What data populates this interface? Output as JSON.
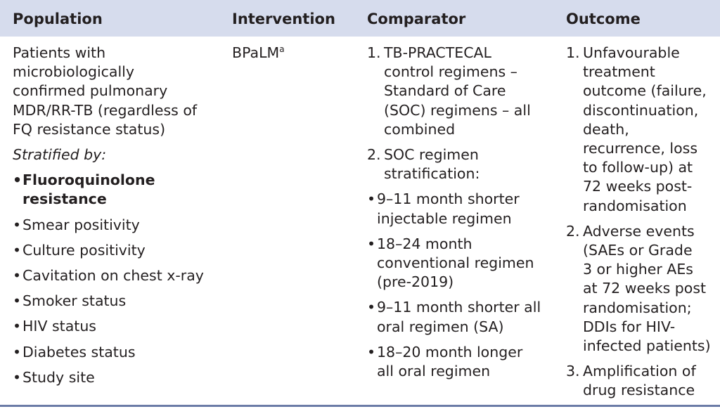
{
  "headers": {
    "population": "Population",
    "intervention": "Intervention",
    "comparator": "Comparator",
    "outcome": "Outcome"
  },
  "population": {
    "description": [
      "Patients with",
      "microbiologically",
      "confirmed pulmonary",
      "MDR/RR-TB (regardless of",
      "FQ resistance status)"
    ],
    "stratified_label": "Stratified by:",
    "strata": [
      {
        "lines": [
          "Fluoroquinolone",
          "resistance"
        ],
        "bold": true
      },
      {
        "lines": [
          "Smear positivity"
        ],
        "bold": false
      },
      {
        "lines": [
          "Culture positivity"
        ],
        "bold": false
      },
      {
        "lines": [
          "Cavitation on chest x-ray"
        ],
        "bold": false
      },
      {
        "lines": [
          "Smoker status"
        ],
        "bold": false
      },
      {
        "lines": [
          "HIV status"
        ],
        "bold": false
      },
      {
        "lines": [
          "Diabetes status"
        ],
        "bold": false
      },
      {
        "lines": [
          "Study site"
        ],
        "bold": false
      }
    ]
  },
  "intervention": {
    "name": "BPaLM",
    "footnote": "a"
  },
  "comparator": {
    "items": [
      {
        "num": "1.",
        "lines": [
          "TB-PRACTECAL",
          "control regimens –",
          "Standard of Care",
          "(SOC) regimens – all",
          "combined"
        ]
      },
      {
        "num": "2.",
        "lines": [
          "SOC regimen",
          "stratification:"
        ]
      }
    ],
    "sub_items": [
      {
        "lines": [
          "9–11 month shorter",
          "injectable regimen"
        ]
      },
      {
        "lines": [
          "18–24 month",
          "conventional regimen",
          "(pre-2019)"
        ]
      },
      {
        "lines": [
          "9–11 month shorter all",
          "oral regimen (SA)"
        ]
      },
      {
        "lines": [
          "18–20 month longer",
          "all oral regimen"
        ]
      }
    ]
  },
  "outcome": {
    "items": [
      {
        "num": "1.",
        "lines": [
          "Unfavourable",
          "treatment",
          "outcome (failure,",
          "discontinuation,",
          "death,",
          "recurrence, loss",
          "to follow-up) at",
          "72 weeks post-",
          "randomisation"
        ]
      },
      {
        "num": "2.",
        "lines": [
          "Adverse events",
          "(SAEs or Grade",
          "3 or higher AEs",
          "at 72 weeks post",
          "randomisation;",
          "DDIs for HIV-",
          "infected patients)"
        ]
      },
      {
        "num": "3.",
        "lines": [
          "Amplification of",
          "drug resistance"
        ]
      }
    ]
  }
}
